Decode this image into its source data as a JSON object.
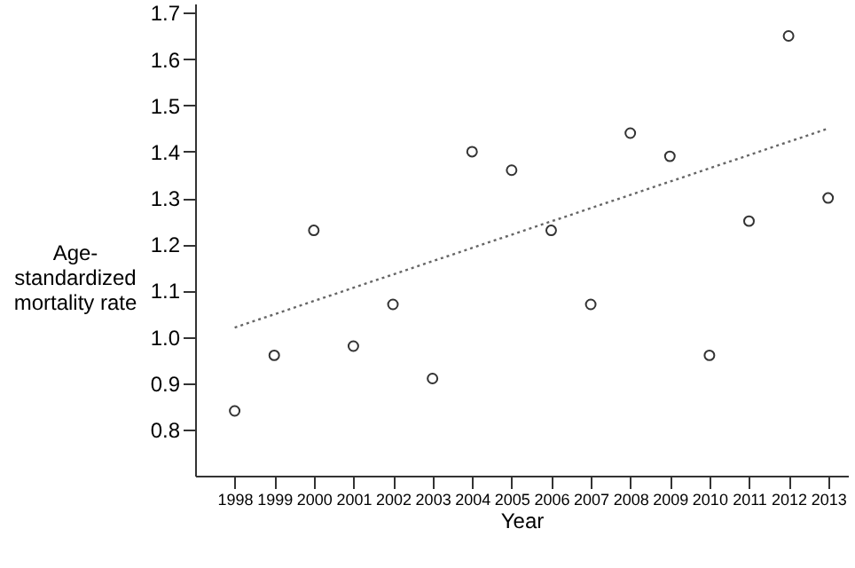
{
  "chart_data": {
    "type": "scatter",
    "xlabel": "Year",
    "ylabel": "Age-standardized mortality rate",
    "x": [
      1998,
      1999,
      2000,
      2001,
      2002,
      2003,
      2004,
      2005,
      2006,
      2007,
      2008,
      2009,
      2010,
      2011,
      2012,
      2013
    ],
    "series": [
      {
        "type": "scatter",
        "color": "#333333",
        "marker": "circle",
        "values": [
          0.84,
          0.96,
          1.23,
          0.98,
          1.07,
          0.91,
          1.4,
          1.36,
          1.23,
          1.07,
          1.44,
          1.39,
          0.96,
          1.25,
          1.65,
          1.3
        ]
      },
      {
        "type": "line",
        "color": "#666666",
        "line_style": "dotted",
        "x": [
          1998,
          2013
        ],
        "values": [
          1.02,
          1.45
        ]
      }
    ],
    "xlim": [
      1997,
      2013.5
    ],
    "xticks": [
      1998,
      1999,
      2000,
      2001,
      2002,
      2003,
      2004,
      2005,
      2006,
      2007,
      2008,
      2009,
      2010,
      2011,
      2012,
      2013
    ],
    "ylim": [
      0.7,
      1.72
    ],
    "yticks": [
      0.8,
      0.9,
      {
        "value": 1.0,
        "label": "1.0"
      },
      1.1,
      1.2,
      1.3,
      1.4,
      1.5,
      1.6,
      1.7
    ],
    "grid": false
  }
}
